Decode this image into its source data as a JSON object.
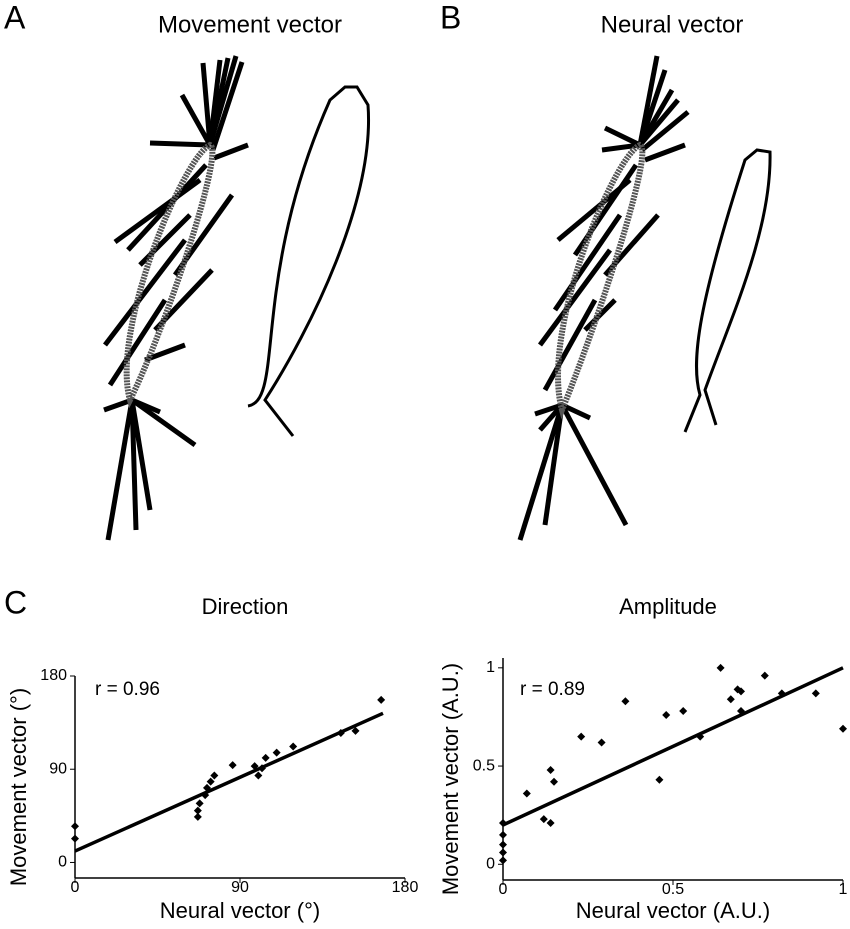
{
  "panels": [
    {
      "label": "A",
      "title": "Movement vector"
    },
    {
      "label": "B",
      "title": "Neural vector"
    }
  ],
  "chart_data": [
    {
      "type": "scatter",
      "panel_label": "C",
      "title": "Direction",
      "x_label": "Neural vector (°)",
      "y_label": "Movement vector (°)",
      "annotation": "r = 0.96",
      "color": "#000000",
      "x": [
        0,
        0,
        67,
        67,
        68,
        71,
        72,
        74,
        76,
        86,
        98,
        100,
        102,
        104,
        110,
        119,
        145,
        153,
        167
      ],
      "y": [
        35,
        23,
        44,
        50,
        57,
        65,
        72,
        78,
        84,
        94,
        93,
        84,
        91,
        101,
        106,
        112,
        125,
        127,
        157
      ],
      "trend_line": {
        "x": [
          0,
          168
        ],
        "y": [
          11,
          144
        ]
      },
      "xlim": [
        0,
        180
      ],
      "ylim": [
        -15,
        180
      ],
      "xticks": [
        0,
        90,
        180
      ],
      "yticks": [
        0,
        90,
        180
      ]
    },
    {
      "type": "scatter",
      "title": "Amplitude",
      "x_label": "Neural vector (A.U.)",
      "y_label": "Movement vector (A.U.)",
      "annotation": "r = 0.89",
      "color": "#000000",
      "x": [
        0,
        0,
        0,
        0,
        0,
        0.07,
        0.12,
        0.14,
        0.14,
        0.15,
        0.23,
        0.29,
        0.36,
        0.46,
        0.48,
        0.53,
        0.58,
        0.64,
        0.67,
        0.69,
        0.7,
        0.7,
        0.77,
        0.82,
        0.92,
        1
      ],
      "y": [
        0.02,
        0.06,
        0.1,
        0.15,
        0.21,
        0.36,
        0.23,
        0.21,
        0.48,
        0.42,
        0.65,
        0.62,
        0.83,
        0.43,
        0.76,
        0.78,
        0.65,
        1,
        0.84,
        0.89,
        0.88,
        0.78,
        0.96,
        0.87,
        0.87,
        0.69
      ],
      "trend_line": {
        "x": [
          0,
          1
        ],
        "y": [
          0.2,
          1
        ]
      },
      "xlim": [
        0,
        1
      ],
      "ylim": [
        -0.08,
        1.05
      ],
      "xticks": [
        0,
        0.5,
        1
      ],
      "yticks": [
        0,
        0.5,
        1
      ]
    }
  ]
}
